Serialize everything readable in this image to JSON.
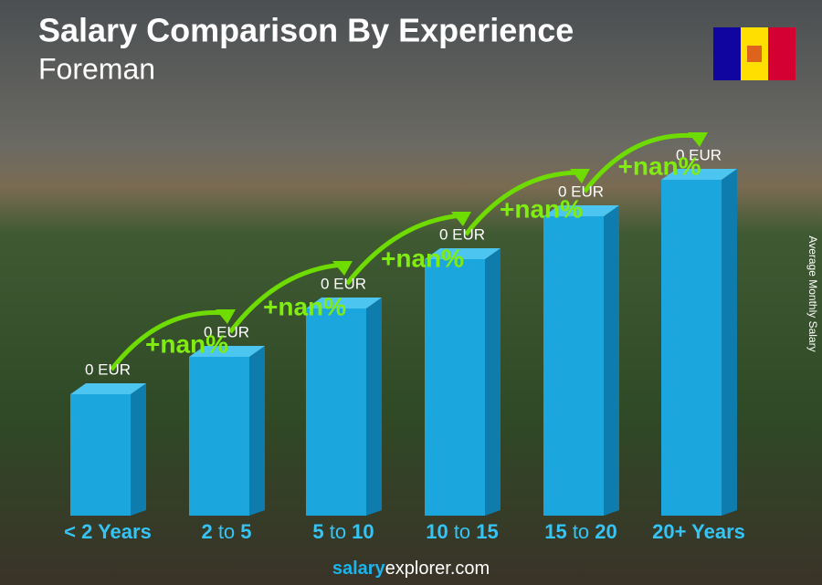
{
  "header": {
    "title": "Salary Comparison By Experience",
    "subtitle": "Foreman"
  },
  "axis_label": "Average Monthly Salary",
  "bars": [
    {
      "category": [
        "< 2 Years"
      ],
      "label": "0 EUR"
    },
    {
      "category": [
        "2",
        " to ",
        "5"
      ],
      "label": "0 EUR",
      "change": "+nan%"
    },
    {
      "category": [
        "5",
        " to ",
        "10"
      ],
      "label": "0 EUR",
      "change": "+nan%"
    },
    {
      "category": [
        "10",
        " to ",
        "15"
      ],
      "label": "0 EUR",
      "change": "+nan%"
    },
    {
      "category": [
        "15",
        " to ",
        "20"
      ],
      "label": "0 EUR",
      "change": "+nan%"
    },
    {
      "category": [
        "20+ Years"
      ],
      "label": "0 EUR",
      "change": "+nan%"
    }
  ],
  "footer": {
    "brand": "salary",
    "domain": "explorer.com"
  }
}
